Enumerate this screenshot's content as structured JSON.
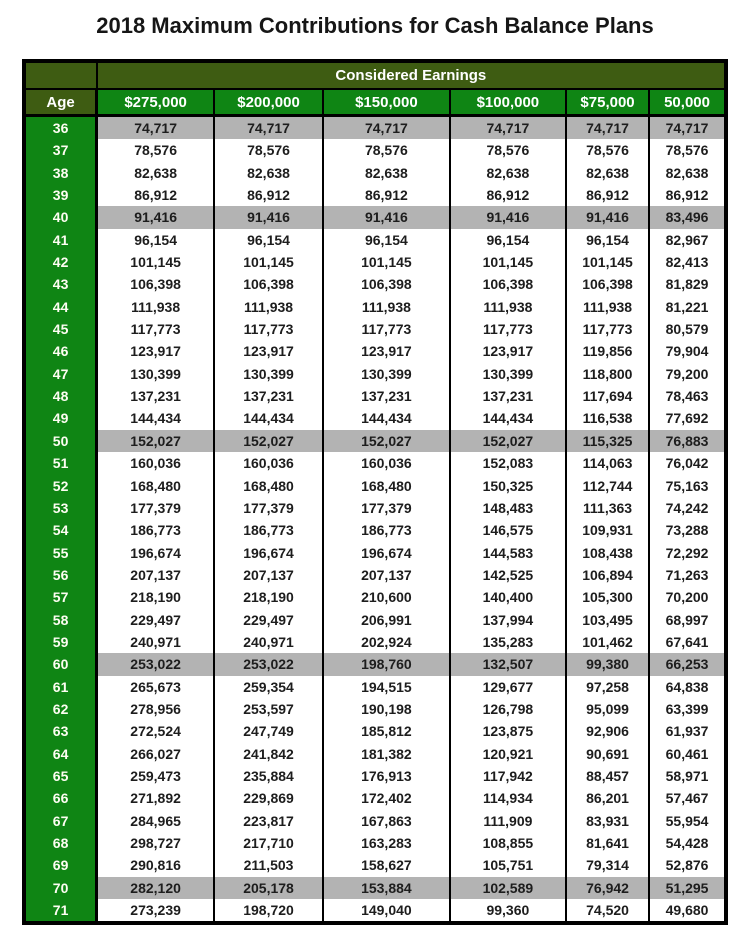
{
  "title": "2018 Maximum Contributions for Cash Balance Plans",
  "colors": {
    "dark_olive_header": "#3E5C12",
    "bright_green": "#0F8514",
    "highlight_gray": "#B3B3B3",
    "border_black": "#000000"
  },
  "table": {
    "group_header": "Considered Earnings",
    "age_header": "Age",
    "column_headers": [
      "$275,000",
      "$200,000",
      "$150,000",
      "$100,000",
      "$75,000",
      "50,000"
    ],
    "highlighted_ages": [
      36,
      40,
      50,
      60,
      70
    ],
    "rows": [
      {
        "age": 36,
        "values": [
          "74,717",
          "74,717",
          "74,717",
          "74,717",
          "74,717",
          "74,717"
        ]
      },
      {
        "age": 37,
        "values": [
          "78,576",
          "78,576",
          "78,576",
          "78,576",
          "78,576",
          "78,576"
        ]
      },
      {
        "age": 38,
        "values": [
          "82,638",
          "82,638",
          "82,638",
          "82,638",
          "82,638",
          "82,638"
        ]
      },
      {
        "age": 39,
        "values": [
          "86,912",
          "86,912",
          "86,912",
          "86,912",
          "86,912",
          "86,912"
        ]
      },
      {
        "age": 40,
        "values": [
          "91,416",
          "91,416",
          "91,416",
          "91,416",
          "91,416",
          "83,496"
        ]
      },
      {
        "age": 41,
        "values": [
          "96,154",
          "96,154",
          "96,154",
          "96,154",
          "96,154",
          "82,967"
        ]
      },
      {
        "age": 42,
        "values": [
          "101,145",
          "101,145",
          "101,145",
          "101,145",
          "101,145",
          "82,413"
        ]
      },
      {
        "age": 43,
        "values": [
          "106,398",
          "106,398",
          "106,398",
          "106,398",
          "106,398",
          "81,829"
        ]
      },
      {
        "age": 44,
        "values": [
          "111,938",
          "111,938",
          "111,938",
          "111,938",
          "111,938",
          "81,221"
        ]
      },
      {
        "age": 45,
        "values": [
          "117,773",
          "117,773",
          "117,773",
          "117,773",
          "117,773",
          "80,579"
        ]
      },
      {
        "age": 46,
        "values": [
          "123,917",
          "123,917",
          "123,917",
          "123,917",
          "119,856",
          "79,904"
        ]
      },
      {
        "age": 47,
        "values": [
          "130,399",
          "130,399",
          "130,399",
          "130,399",
          "118,800",
          "79,200"
        ]
      },
      {
        "age": 48,
        "values": [
          "137,231",
          "137,231",
          "137,231",
          "137,231",
          "117,694",
          "78,463"
        ]
      },
      {
        "age": 49,
        "values": [
          "144,434",
          "144,434",
          "144,434",
          "144,434",
          "116,538",
          "77,692"
        ]
      },
      {
        "age": 50,
        "values": [
          "152,027",
          "152,027",
          "152,027",
          "152,027",
          "115,325",
          "76,883"
        ]
      },
      {
        "age": 51,
        "values": [
          "160,036",
          "160,036",
          "160,036",
          "152,083",
          "114,063",
          "76,042"
        ]
      },
      {
        "age": 52,
        "values": [
          "168,480",
          "168,480",
          "168,480",
          "150,325",
          "112,744",
          "75,163"
        ]
      },
      {
        "age": 53,
        "values": [
          "177,379",
          "177,379",
          "177,379",
          "148,483",
          "111,363",
          "74,242"
        ]
      },
      {
        "age": 54,
        "values": [
          "186,773",
          "186,773",
          "186,773",
          "146,575",
          "109,931",
          "73,288"
        ]
      },
      {
        "age": 55,
        "values": [
          "196,674",
          "196,674",
          "196,674",
          "144,583",
          "108,438",
          "72,292"
        ]
      },
      {
        "age": 56,
        "values": [
          "207,137",
          "207,137",
          "207,137",
          "142,525",
          "106,894",
          "71,263"
        ]
      },
      {
        "age": 57,
        "values": [
          "218,190",
          "218,190",
          "210,600",
          "140,400",
          "105,300",
          "70,200"
        ]
      },
      {
        "age": 58,
        "values": [
          "229,497",
          "229,497",
          "206,991",
          "137,994",
          "103,495",
          "68,997"
        ]
      },
      {
        "age": 59,
        "values": [
          "240,971",
          "240,971",
          "202,924",
          "135,283",
          "101,462",
          "67,641"
        ]
      },
      {
        "age": 60,
        "values": [
          "253,022",
          "253,022",
          "198,760",
          "132,507",
          "99,380",
          "66,253"
        ]
      },
      {
        "age": 61,
        "values": [
          "265,673",
          "259,354",
          "194,515",
          "129,677",
          "97,258",
          "64,838"
        ]
      },
      {
        "age": 62,
        "values": [
          "278,956",
          "253,597",
          "190,198",
          "126,798",
          "95,099",
          "63,399"
        ]
      },
      {
        "age": 63,
        "values": [
          "272,524",
          "247,749",
          "185,812",
          "123,875",
          "92,906",
          "61,937"
        ]
      },
      {
        "age": 64,
        "values": [
          "266,027",
          "241,842",
          "181,382",
          "120,921",
          "90,691",
          "60,461"
        ]
      },
      {
        "age": 65,
        "values": [
          "259,473",
          "235,884",
          "176,913",
          "117,942",
          "88,457",
          "58,971"
        ]
      },
      {
        "age": 66,
        "values": [
          "271,892",
          "229,869",
          "172,402",
          "114,934",
          "86,201",
          "57,467"
        ]
      },
      {
        "age": 67,
        "values": [
          "284,965",
          "223,817",
          "167,863",
          "111,909",
          "83,931",
          "55,954"
        ]
      },
      {
        "age": 68,
        "values": [
          "298,727",
          "217,710",
          "163,283",
          "108,855",
          "81,641",
          "54,428"
        ]
      },
      {
        "age": 69,
        "values": [
          "290,816",
          "211,503",
          "158,627",
          "105,751",
          "79,314",
          "52,876"
        ]
      },
      {
        "age": 70,
        "values": [
          "282,120",
          "205,178",
          "153,884",
          "102,589",
          "76,942",
          "51,295"
        ]
      },
      {
        "age": 71,
        "values": [
          "273,239",
          "198,720",
          "149,040",
          "99,360",
          "74,520",
          "49,680"
        ]
      }
    ]
  }
}
